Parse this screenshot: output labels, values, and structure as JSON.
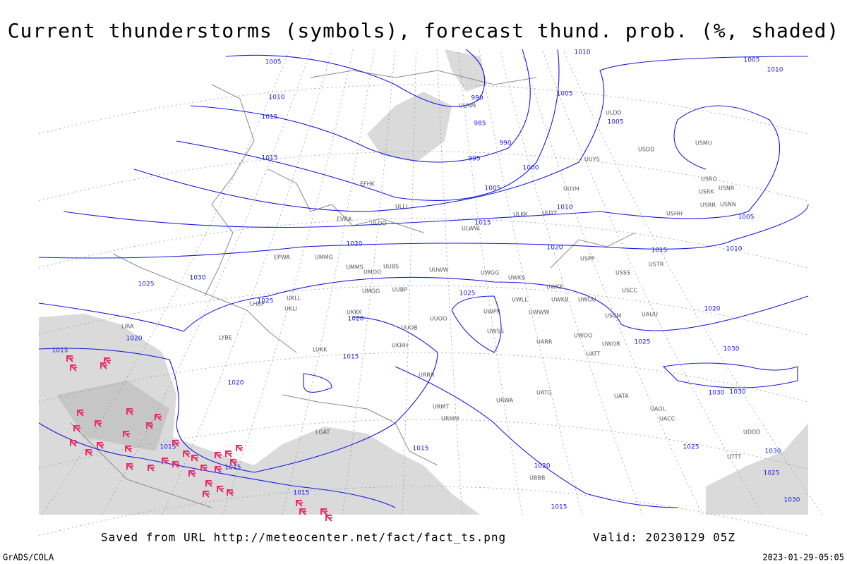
{
  "title": "Current thunderstorms (symbols), forecast thund. prob. (%, shaded)",
  "footer": {
    "source": "Saved from URL http://meteocenter.net/fact/fact_ts.png",
    "valid": "Valid: 20230129 05Z",
    "credit": "GrADS/COLA",
    "timestamp": "2023-01-29-05:05"
  },
  "isobar_labels": [
    "1005",
    "1010",
    "1010",
    "1015",
    "990",
    "985",
    "990",
    "995",
    "1000",
    "1005",
    "1005",
    "1005",
    "1010",
    "1015",
    "1005",
    "1010",
    "1015",
    "1020",
    "1020",
    "1015",
    "1010",
    "1005",
    "1030",
    "1025",
    "1025",
    "1020",
    "1015",
    "1020",
    "1015",
    "1020",
    "1025",
    "1025",
    "1020",
    "1030",
    "1030",
    "1030",
    "1025",
    "1030",
    "1025",
    "1030",
    "1015",
    "1015",
    "1015",
    "1020",
    "1015",
    "1015"
  ],
  "stations": [
    "ULMM",
    "ULDD",
    "USDD",
    "USMU",
    "UUYS",
    "EFHK",
    "UUYH",
    "USRO",
    "USRK",
    "USNR",
    "USRR",
    "USNN",
    "USHH",
    "ULLI",
    "ULKK",
    "UUYY",
    "EVRA",
    "ULOO",
    "ULWW",
    "EPWA",
    "UMMG",
    "UMMS",
    "UMOO",
    "UUBS",
    "UUWW",
    "UWGG",
    "UWKS",
    "USPP",
    "USSS",
    "USTR",
    "UWKE",
    "USCC",
    "UMGG",
    "UUBP",
    "UKLL",
    "UKLI",
    "LHBP",
    "UWLL",
    "UWKB",
    "UWUU",
    "UUOO",
    "UKKK",
    "UWPP",
    "UWWW",
    "USCM",
    "UAUU",
    "LIRA",
    "LYBE",
    "UUOB",
    "UWSS",
    "UWOO",
    "UKHH",
    "UARR",
    "UWOR",
    "UATT",
    "LUKK",
    "URRR",
    "UATG",
    "UATA",
    "UAOL",
    "UACC",
    "URMT",
    "URMM",
    "URWA",
    "UBBB",
    "LGAT",
    "UDDD",
    "UTTT"
  ]
}
